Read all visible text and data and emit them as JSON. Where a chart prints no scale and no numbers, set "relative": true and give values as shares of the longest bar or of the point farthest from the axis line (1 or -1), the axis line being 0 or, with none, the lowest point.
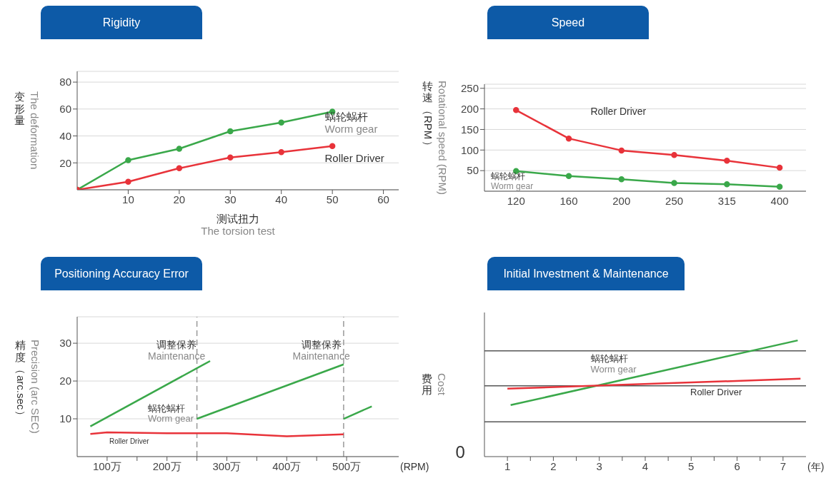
{
  "chart_data": [
    {
      "type": "line",
      "title": "Rigidity",
      "xlabel": "测试扭力\nThe torsion test",
      "ylabel": "变形量\nThe deformation",
      "x": [
        0,
        10,
        20,
        30,
        40,
        50
      ],
      "xlim": [
        0,
        63
      ],
      "xticks": [
        10,
        20,
        30,
        40,
        50,
        60
      ],
      "ylim": [
        0,
        88
      ],
      "yticks": [
        20,
        40,
        60,
        80
      ],
      "grid": "y",
      "marker": "circle",
      "series": [
        {
          "name": "蜗轮蜗杆\nWorm gear",
          "color": "#3aa84a",
          "values": [
            0,
            22,
            30.5,
            43.5,
            50,
            58
          ]
        },
        {
          "name": "Roller Driver",
          "color": "#e8333a",
          "values": [
            0,
            6,
            16,
            24,
            28,
            32.5
          ]
        }
      ]
    },
    {
      "type": "line",
      "title": "Speed",
      "ylabel": "转速（RPM）\nRotational speed (RPM)",
      "categories": [
        "120",
        "160",
        "200",
        "250",
        "315",
        "400"
      ],
      "ylim": [
        0,
        260
      ],
      "yticks": [
        50,
        100,
        150,
        200,
        250
      ],
      "grid": "y",
      "marker": "circle",
      "series": [
        {
          "name": "Roller Driver",
          "color": "#e8333a",
          "values": [
            197,
            128,
            99,
            88,
            74,
            57
          ]
        },
        {
          "name": "蜗轮蜗杆\nWorm gear",
          "color": "#3aa84a",
          "values": [
            49,
            37,
            29,
            20,
            17,
            11
          ]
        }
      ]
    },
    {
      "type": "line",
      "title": "Positioning Accuracy Error",
      "xlabel": "(RPM)",
      "ylabel": "精度（arc.sec）\nPrecision (arc SEC)",
      "xlim": [
        50,
        587
      ],
      "xticks": [
        {
          "value": 100,
          "label": "100万"
        },
        {
          "value": 150,
          "label": null
        },
        {
          "value": 200,
          "label": "200万"
        },
        {
          "value": 250,
          "label": null
        },
        {
          "value": 300,
          "label": "300万"
        },
        {
          "value": 350,
          "label": null
        },
        {
          "value": 400,
          "label": "400万"
        },
        {
          "value": 450,
          "label": null
        },
        {
          "value": 500,
          "label": "500万"
        }
      ],
      "ylim": [
        0,
        37
      ],
      "yticks": [
        10,
        20,
        30
      ],
      "grid": "y",
      "marker": "none",
      "ref_lines": [
        {
          "axis": "x",
          "value": 250,
          "color": "#999999",
          "line_style": "dashed"
        },
        {
          "axis": "x",
          "value": 495,
          "color": "#999999",
          "line_style": "dashed"
        }
      ],
      "annotations": [
        "调整保养\nMaintenance",
        "调整保养\nMaintenance"
      ],
      "series": [
        {
          "name": "蜗轮蜗杆\nWorm gear",
          "color": "#3aa84a",
          "x": [
            72,
            272
          ],
          "values": [
            8,
            25.3
          ]
        },
        {
          "color": "#3aa84a",
          "x": [
            250,
            495
          ],
          "values": [
            10,
            24.4
          ]
        },
        {
          "color": "#3aa84a",
          "x": [
            495,
            542
          ],
          "values": [
            10,
            13.3
          ]
        },
        {
          "name": "Roller Driver",
          "color": "#e8333a",
          "x": [
            72,
            100,
            200,
            300,
            400,
            495
          ],
          "values": [
            6,
            6.4,
            6.2,
            6.2,
            5.4,
            5.9
          ]
        }
      ]
    },
    {
      "type": "line",
      "title": "Initial Investment & Maintenance",
      "xlabel": "(年)",
      "ylabel": "费用\nCost",
      "relative": true,
      "annotations": [
        "0"
      ],
      "xlim": [
        0.5,
        7.5
      ],
      "xticks": [
        1,
        {
          "value": 1.5,
          "label": null
        },
        2,
        {
          "value": 2.5,
          "label": null
        },
        3,
        {
          "value": 3.5,
          "label": null
        },
        4,
        {
          "value": 4.5,
          "label": null
        },
        5,
        {
          "value": 5.5,
          "label": null
        },
        6,
        {
          "value": 6.5,
          "label": null
        },
        7
      ],
      "marker": "none",
      "ref_lines": [
        {
          "axis": "y",
          "value": 0.3,
          "color": "#555555"
        },
        {
          "axis": "y",
          "value": 0.61,
          "color": "#555555"
        },
        {
          "axis": "y",
          "value": 0.91,
          "color": "#555555"
        }
      ],
      "series": [
        {
          "name": "蜗轮蜗杆\nWorm gear",
          "color": "#3aa84a",
          "x": [
            1.07,
            7.32
          ],
          "values": [
            0.443,
            1
          ]
        },
        {
          "name": "Roller Driver",
          "color": "#e8333a",
          "x": [
            1.0,
            7.38
          ],
          "values": [
            0.584,
            0.67
          ]
        }
      ]
    }
  ]
}
